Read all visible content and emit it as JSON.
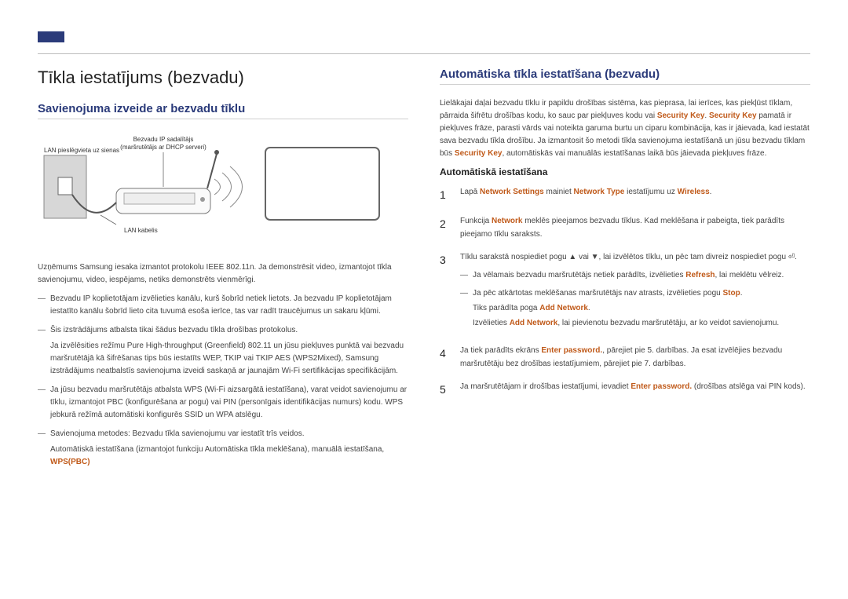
{
  "colors": {
    "accent": "#2b3b7a",
    "keyword": "#c05a1a",
    "text": "#444444",
    "heading": "#222222",
    "rule": "#bbbbbb"
  },
  "left": {
    "title": "Tīkla iestatījums (bezvadu)",
    "section_title": "Savienojuma izveide ar bezvadu tīklu",
    "diagram": {
      "label_top": "Bezvadu IP sadalītājs",
      "label_sub": "(maršrutētājs ar DHCP serveri)",
      "label_left": "LAN pieslēgvieta uz sienas",
      "label_bottom": "LAN kabelis"
    },
    "intro": "Uzņēmums Samsung iesaka izmantot protokolu IEEE 802.11n. Ja demonstrēsit video, izmantojot tīkla savienojumu, video, iespējams, netiks demonstrēts vienmērīgi.",
    "bullets": [
      {
        "text": "Bezvadu IP koplietotājam izvēlieties kanālu, kurš šobrīd netiek lietots. Ja bezvadu IP koplietotājam iestatīto kanālu šobrīd lieto cita tuvumā esoša ierīce, tas var radīt traucējumus un sakaru kļūmi."
      },
      {
        "text": "Šis izstrādājums atbalsta tikai šādus bezvadu tīkla drošības protokolus.",
        "sub": "Ja izvēlēsities režīmu Pure High-throughput (Greenfield) 802.11 un jūsu piekļuves punktā vai bezvadu maršrutētājā kā šifrēšanas tips būs iestatīts WEP, TKIP vai TKIP AES (WPS2Mixed), Samsung izstrādājums neatbalstīs savienojuma izveidi saskaņā ar jaunajām Wi-Fi sertifikācijas specifikācijām."
      },
      {
        "text": "Ja jūsu bezvadu maršrutētājs atbalsta WPS (Wi-Fi aizsargātā iestatīšana), varat veidot savienojumu ar tīklu, izmantojot PBC (konfigurēšana ar pogu) vai PIN (personīgais identifikācijas numurs) kodu. WPS jebkurā režīmā automātiski konfigurēs SSID un WPA atslēgu."
      },
      {
        "text": "Savienojuma metodes: Bezvadu tīkla savienojumu var iestatīt trīs veidos.",
        "sub_plain": "Automātiskā iestatīšana (izmantojot funkciju Automātiska tīkla meklēšana), manuālā iestatīšana, ",
        "sub_orange": "WPS(PBC)"
      }
    ]
  },
  "right": {
    "section_title": "Automātiska tīkla iestatīšana (bezvadu)",
    "intro_parts": [
      {
        "t": "Lielākajai daļai bezvadu tīklu ir papildu drošības sistēma, kas pieprasa, lai ierīces, kas piekļūst tīklam, pārraida šifrētu drošības kodu, ko sauc par piekļuves kodu vai "
      },
      {
        "t": "Security Key",
        "o": true
      },
      {
        "t": ". "
      },
      {
        "t": "Security Key",
        "o": true
      },
      {
        "t": " pamatā ir piekļuves frāze, parasti vārds vai noteikta garuma burtu un ciparu kombinācija, kas ir jāievada, kad iestatāt sava bezvadu tīkla drošību. Ja izmantosit šo metodi tīkla savienojuma iestatīšanā un jūsu bezvadu tīklam būs "
      },
      {
        "t": "Security Key",
        "o": true
      },
      {
        "t": ", automātiskās vai manuālās iestatīšanas laikā būs jāievada piekļuves frāze."
      }
    ],
    "subheading": "Automātiskā iestatīšana",
    "steps": [
      {
        "num": "1",
        "parts": [
          {
            "t": "Lapā "
          },
          {
            "t": "Network Settings",
            "o": true
          },
          {
            "t": " mainiet "
          },
          {
            "t": "Network Type",
            "o": true
          },
          {
            "t": " iestatījumu uz "
          },
          {
            "t": "Wireless",
            "o": true
          },
          {
            "t": "."
          }
        ]
      },
      {
        "num": "2",
        "parts": [
          {
            "t": "Funkcija "
          },
          {
            "t": "Network",
            "o": true
          },
          {
            "t": " meklēs pieejamos bezvadu tīklus. Kad meklēšana ir pabeigta, tiek parādīts pieejamo tīklu saraksts."
          }
        ]
      },
      {
        "num": "3",
        "parts": [
          {
            "t": "Tīklu sarakstā nospiediet pogu ▲ vai ▼, lai izvēlētos tīklu, un pēc tam divreiz nospiediet pogu ⏎."
          }
        ],
        "substeps": [
          {
            "parts": [
              {
                "t": "Ja vēlamais bezvadu maršrutētājs netiek parādīts, izvēlieties "
              },
              {
                "t": "Refresh",
                "o": true
              },
              {
                "t": ", lai meklētu vēlreiz."
              }
            ]
          },
          {
            "parts": [
              {
                "t": "Ja pēc atkārtotas meklēšanas maršrutētājs nav atrasts, izvēlieties pogu "
              },
              {
                "t": "Stop",
                "o": true
              },
              {
                "t": "."
              }
            ],
            "lines": [
              {
                "parts": [
                  {
                    "t": "Tiks parādīta poga "
                  },
                  {
                    "t": "Add Network",
                    "o": true
                  },
                  {
                    "t": "."
                  }
                ]
              },
              {
                "parts": [
                  {
                    "t": "Izvēlieties "
                  },
                  {
                    "t": "Add Network",
                    "o": true
                  },
                  {
                    "t": ", lai pievienotu bezvadu maršrutētāju, ar ko veidot savienojumu."
                  }
                ]
              }
            ]
          }
        ]
      },
      {
        "num": "4",
        "parts": [
          {
            "t": "Ja tiek parādīts ekrāns "
          },
          {
            "t": "Enter password.",
            "o": true
          },
          {
            "t": ", pārejiet pie 5. darbības. Ja esat izvēlējies bezvadu maršrutētāju bez drošības iestatījumiem, pārejiet pie 7. darbības."
          }
        ]
      },
      {
        "num": "5",
        "parts": [
          {
            "t": "Ja maršrutētājam ir drošības iestatījumi, ievadiet "
          },
          {
            "t": "Enter password.",
            "o": true
          },
          {
            "t": " (drošības atslēga vai PIN kods)."
          }
        ]
      }
    ]
  }
}
